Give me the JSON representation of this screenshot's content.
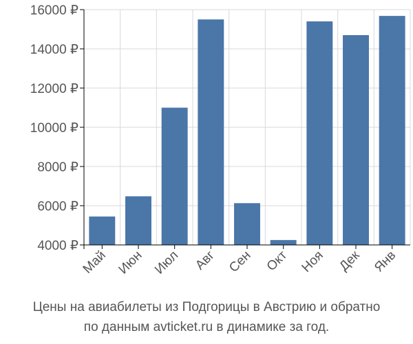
{
  "caption": {
    "line1": "Цены на авиабилеты из Подгорицы в Австрию и обратно",
    "line2": "по данным avticket.ru в динамике за год."
  },
  "colors": {
    "bar": "#4a76a8",
    "grid": "#d9d9d9",
    "axis": "#000000",
    "text": "#555555"
  },
  "chart_data": {
    "type": "bar",
    "title": "",
    "xlabel": "",
    "ylabel": "",
    "categories": [
      "Май",
      "Июн",
      "Июл",
      "Авг",
      "Сен",
      "Окт",
      "Ноя",
      "Дек",
      "Янв"
    ],
    "values": [
      5450,
      6480,
      11000,
      15500,
      6130,
      4250,
      15400,
      14700,
      15680
    ],
    "ylim": [
      4000,
      16000
    ],
    "yticks": [
      4000,
      6000,
      8000,
      10000,
      12000,
      14000,
      16000
    ],
    "ytick_labels": [
      "4000 ₽",
      "6000 ₽",
      "8000 ₽",
      "10000 ₽",
      "12000 ₽",
      "14000 ₽",
      "16000 ₽"
    ],
    "grid": true,
    "legend": "none"
  }
}
